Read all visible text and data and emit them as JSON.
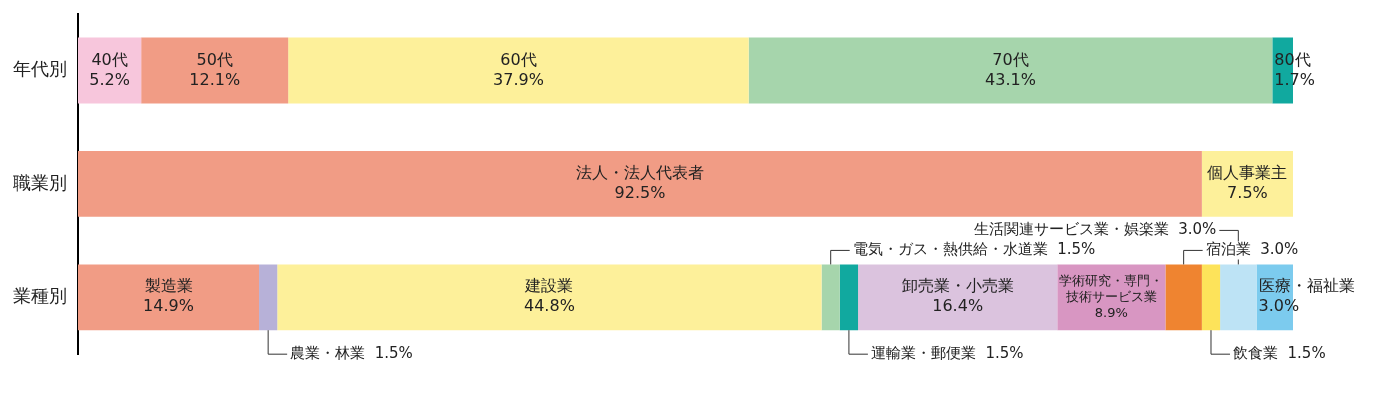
{
  "chart_data": {
    "type": "bar",
    "orientation": "horizontal",
    "stacked": true,
    "legend": false,
    "grid": false,
    "tick_labels": "y",
    "categories": [
      "年代別",
      "職業別",
      "業種別"
    ],
    "series": [
      {
        "name": "40代",
        "color": "#f7c6dc",
        "values": [
          5.2,
          null,
          null
        ],
        "value_labels": [
          "5.2%",
          null,
          null
        ]
      },
      {
        "name": "50代",
        "color": "#f19c85",
        "values": [
          12.1,
          null,
          null
        ],
        "value_labels": [
          "12.1%",
          null,
          null
        ]
      },
      {
        "name": "60代",
        "color": "#fdf09a",
        "values": [
          37.9,
          null,
          null
        ],
        "value_labels": [
          "37.9%",
          null,
          null
        ]
      },
      {
        "name": "70代",
        "color": "#a6d5ac",
        "values": [
          43.1,
          null,
          null
        ],
        "value_labels": [
          "43.1%",
          null,
          null
        ]
      },
      {
        "name": "80代",
        "color": "#11a99f",
        "values": [
          1.7,
          null,
          null
        ],
        "value_labels": [
          "1.7%",
          null,
          null
        ]
      },
      {
        "name": "法人・法人代表者",
        "color": "#f19c85",
        "values": [
          null,
          92.5,
          null
        ],
        "value_labels": [
          null,
          "92.5%",
          null
        ]
      },
      {
        "name": "個人事業主",
        "color": "#fdf09a",
        "values": [
          null,
          7.5,
          null
        ],
        "value_labels": [
          null,
          "7.5%",
          null
        ]
      },
      {
        "name": "製造業",
        "color": "#f19c85",
        "values": [
          null,
          null,
          14.9
        ],
        "value_labels": [
          null,
          null,
          "14.9%"
        ]
      },
      {
        "name": "農業・林業",
        "color": "#b7b1d8",
        "values": [
          null,
          null,
          1.5
        ],
        "value_labels": [
          null,
          null,
          "1.5%"
        ]
      },
      {
        "name": "建設業",
        "color": "#fdf09a",
        "values": [
          null,
          null,
          44.8
        ],
        "value_labels": [
          null,
          null,
          "44.8%"
        ]
      },
      {
        "name": "電気・ガス・熱供給・水道業",
        "color": "#a6d5ac",
        "values": [
          null,
          null,
          1.5
        ],
        "value_labels": [
          null,
          null,
          "1.5%"
        ]
      },
      {
        "name": "運輸業・郵便業",
        "color": "#11a99f",
        "values": [
          null,
          null,
          1.5
        ],
        "value_labels": [
          null,
          null,
          "1.5%"
        ]
      },
      {
        "name": "卸売業・小売業",
        "color": "#dbc3de",
        "values": [
          null,
          null,
          16.4
        ],
        "value_labels": [
          null,
          null,
          "16.4%"
        ]
      },
      {
        "name": "学術研究・専門・技術サービス業",
        "color": "#d896c2",
        "values": [
          null,
          null,
          8.9
        ],
        "value_labels": [
          null,
          null,
          "8.9%"
        ]
      },
      {
        "name": "宿泊業",
        "color": "#ef8430",
        "values": [
          null,
          null,
          3.0
        ],
        "value_labels": [
          null,
          null,
          "3.0%"
        ]
      },
      {
        "name": "飲食業",
        "color": "#fde35a",
        "values": [
          null,
          null,
          1.5
        ],
        "value_labels": [
          null,
          null,
          "1.5%"
        ]
      },
      {
        "name": "生活関連サービス業・娯楽業",
        "color": "#bde3f5",
        "values": [
          null,
          null,
          3.0
        ],
        "value_labels": [
          null,
          null,
          "3.0%"
        ]
      },
      {
        "name": "医療・福祉業",
        "color": "#7ccbee",
        "values": [
          null,
          null,
          3.0
        ],
        "value_labels": [
          null,
          null,
          "3.0%"
        ]
      }
    ]
  }
}
